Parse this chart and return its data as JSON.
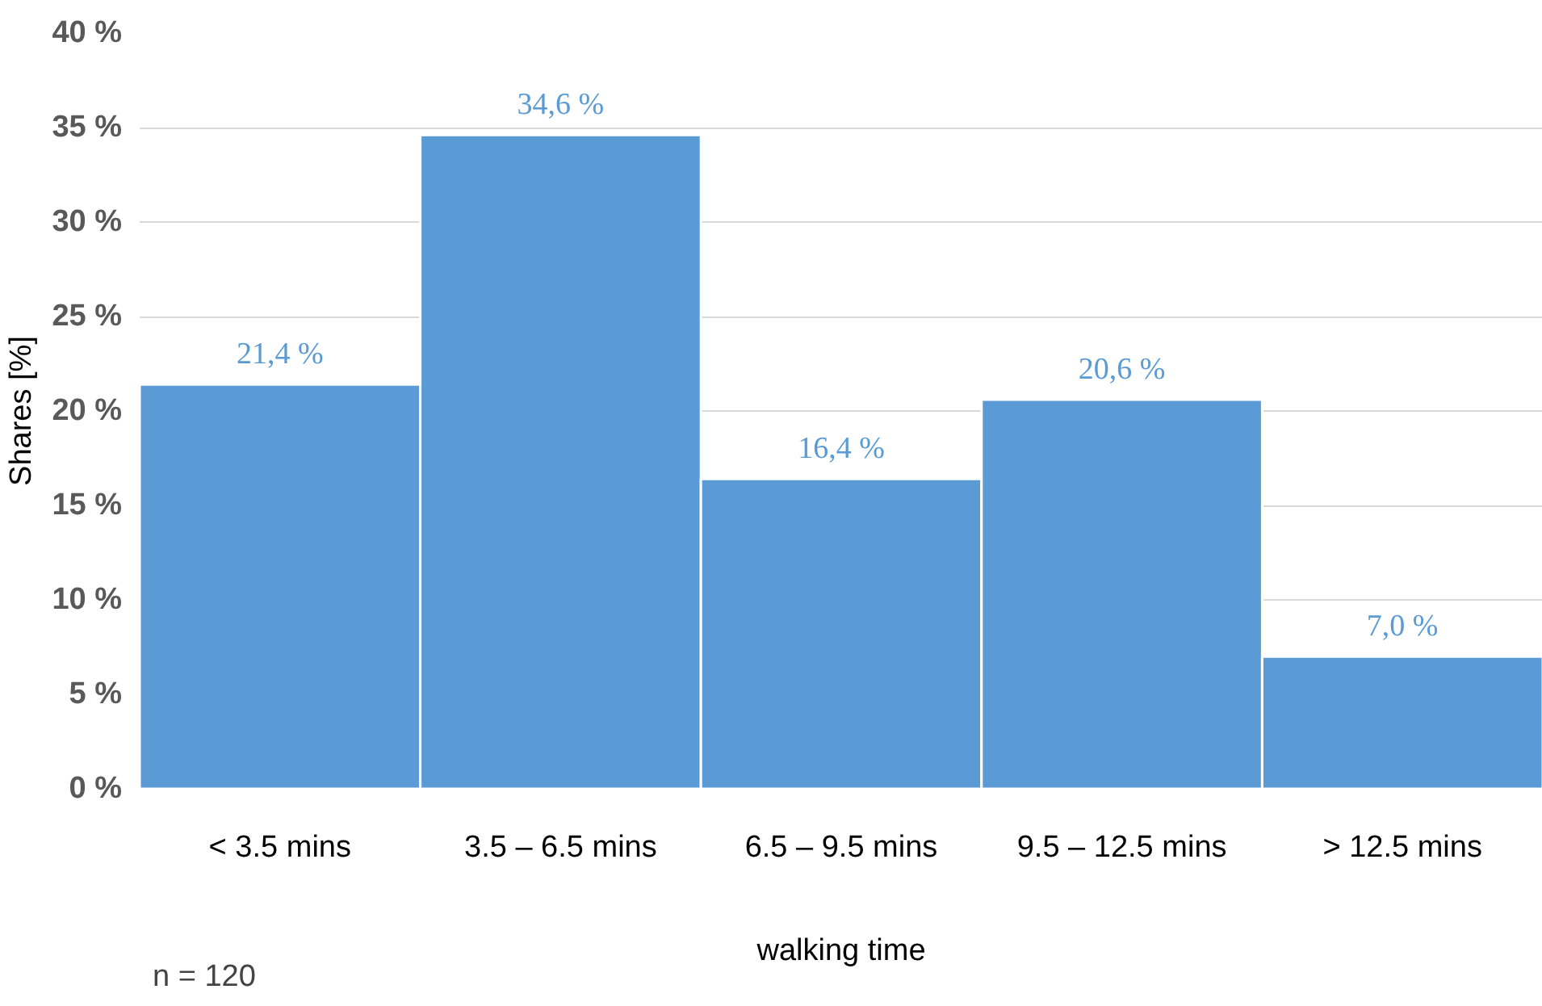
{
  "chart_data": {
    "type": "bar",
    "xlabel": "walking time",
    "ylabel": "Shares [%]",
    "categories": [
      "< 3.5 mins",
      "3.5 – 6.5 mins",
      "6.5 – 9.5 mins",
      "9.5 – 12.5 mins",
      "> 12.5 mins"
    ],
    "values": [
      21.4,
      34.6,
      16.4,
      20.6,
      7.0
    ],
    "value_labels": [
      "21,4 %",
      "34,6 %",
      "16,4 %",
      "20,6 %",
      "7,0 %"
    ],
    "color": "#5b9bd5",
    "ylim": [
      0,
      40
    ],
    "yticks": [
      {
        "value": 0,
        "label": "0 %"
      },
      {
        "value": 5,
        "label": "5 %"
      },
      {
        "value": 10,
        "label": "10 %"
      },
      {
        "value": 15,
        "label": "15 %"
      },
      {
        "value": 20,
        "label": "20 %"
      },
      {
        "value": 25,
        "label": "25 %"
      },
      {
        "value": 30,
        "label": "30 %"
      },
      {
        "value": 35,
        "label": "35 %"
      },
      {
        "value": 40,
        "label": "40 %"
      }
    ],
    "grid": "y",
    "annotations": [
      "n = 120"
    ]
  }
}
